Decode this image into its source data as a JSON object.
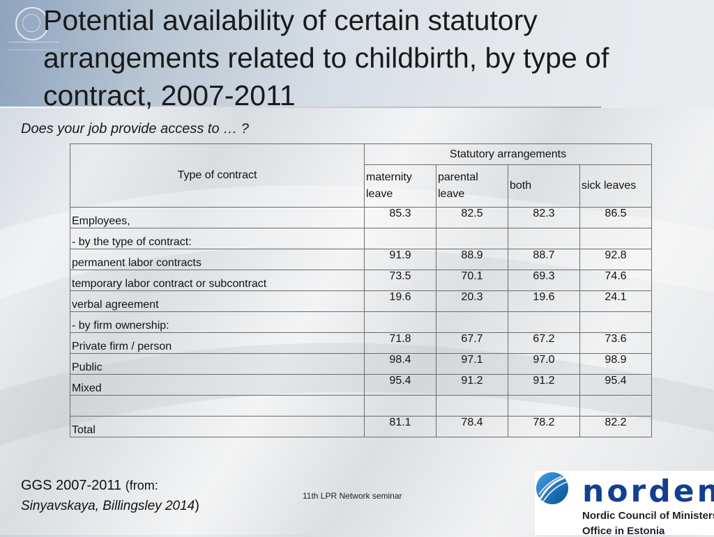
{
  "slide": {
    "title": "Potential availability of certain statutory arrangements related to childbirth, by type of contract, 2007-2011",
    "subtitle": "Does your job provide access to … ?",
    "footer_center": "11th LPR Network seminar",
    "source_line1": "GGS 2007-2011",
    "source_from": "(from:",
    "source_authors": "Sinyavskaya, Billingsley 2014",
    "source_close": ")"
  },
  "table": {
    "col_header_left": "Type of contract",
    "group_header": "Statutory arrangements",
    "columns": [
      "maternity leave",
      "parental leave",
      "both",
      "sick leaves"
    ],
    "rows": [
      {
        "label": "Employees,",
        "values": [
          "85.3",
          "82.5",
          "82.3",
          "86.5"
        ],
        "bold": true
      },
      {
        "label": "- by the type of contract:",
        "values": [
          "",
          "",
          "",
          ""
        ],
        "bold": false
      },
      {
        "label": "permanent labor contracts",
        "values": [
          "91.9",
          "88.9",
          "88.7",
          "92.8"
        ],
        "bold": false
      },
      {
        "label": "temporary labor contract or subcontract",
        "values": [
          "73.5",
          "70.1",
          "69.3",
          "74.6"
        ],
        "bold": false
      },
      {
        "label": "verbal agreement",
        "values": [
          "19.6",
          "20.3",
          "19.6",
          "24.1"
        ],
        "bold": false
      },
      {
        "label": "- by firm ownership:",
        "values": [
          "",
          "",
          "",
          ""
        ],
        "bold": false
      },
      {
        "label": "Private firm / person",
        "values": [
          "71.8",
          "67.7",
          "67.2",
          "73.6"
        ],
        "bold": false
      },
      {
        "label": "Public",
        "values": [
          "98.4",
          "97.1",
          "97.0",
          "98.9"
        ],
        "bold": false
      },
      {
        "label": "Mixed",
        "values": [
          "95.4",
          "91.2",
          "91.2",
          "95.4"
        ],
        "bold": false
      },
      {
        "label": "",
        "values": [
          "",
          "",
          "",
          ""
        ],
        "bold": false
      },
      {
        "label": "Total",
        "values": [
          "81.1",
          "78.4",
          "78.2",
          "82.2"
        ],
        "bold": true
      }
    ]
  },
  "logo": {
    "wordmark": "norden",
    "line1": "Nordic Council of Ministers'",
    "line2": "Office in Estonia",
    "accent_color": "#123f91"
  }
}
